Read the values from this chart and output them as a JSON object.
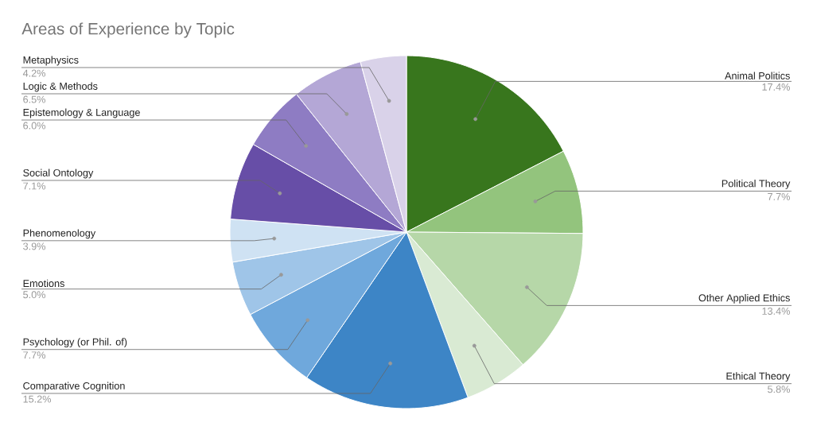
{
  "chart_data": {
    "type": "pie",
    "title": "Areas of Experience by Topic",
    "categories": [
      "Animal Politics",
      "Political Theory",
      "Other Applied Ethics",
      "Ethical Theory",
      "Comparative Cognition",
      "Psychology (or Phil. of)",
      "Emotions",
      "Phenomenology",
      "Social Ontology",
      "Epistemology & Language",
      "Logic & Methods",
      "Metaphysics"
    ],
    "values": [
      17.4,
      7.7,
      13.4,
      5.8,
      15.2,
      7.7,
      5.0,
      3.9,
      7.1,
      6.0,
      6.5,
      4.2
    ],
    "colors": [
      "#38761d",
      "#93c47d",
      "#b6d7a8",
      "#d9ead3",
      "#3d85c6",
      "#6fa8dc",
      "#9fc5e8",
      "#cfe2f3",
      "#674ea7",
      "#8e7cc3",
      "#b4a7d6",
      "#d9d2e9"
    ],
    "value_labels": [
      "17.4%",
      "7.7%",
      "13.4%",
      "5.8%",
      "15.2%",
      "7.7%",
      "5.0%",
      "3.9%",
      "7.1%",
      "6.0%",
      "6.5%",
      "4.2%"
    ]
  }
}
